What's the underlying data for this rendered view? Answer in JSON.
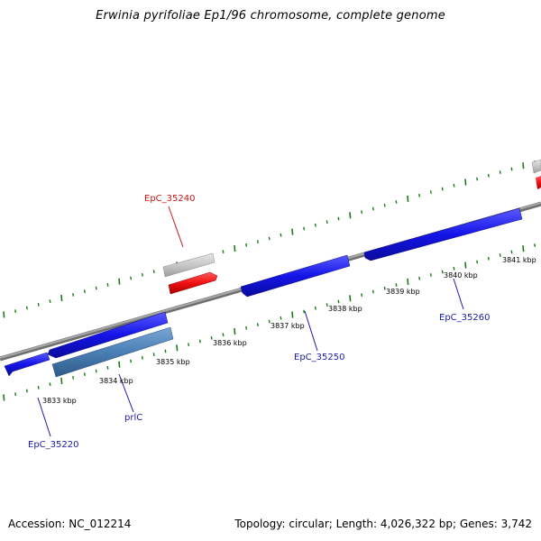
{
  "title": "Erwinia pyrifoliae Ep1/96 chromosome, complete genome",
  "footer": {
    "accession": "Accession: NC_012214",
    "stats": "Topology: circular; Length: 4,026,322 bp; Genes: 3,742"
  },
  "colors": {
    "gene_forward": "#1f1ff0",
    "gene_reverse": "#1f1ff0",
    "gene_prlC": "#4a7fb5",
    "gene_grey": "#c4c4c4",
    "gene_red": "#f01010",
    "label_blue": "#1a1aa8",
    "label_red": "#c81818",
    "tick_green": "#1a7a1a",
    "backbone": "#8a8a8a"
  },
  "kbp_labels": [
    {
      "text": "3833 kbp"
    },
    {
      "text": "3834 kbp"
    },
    {
      "text": "3835 kbp"
    },
    {
      "text": "3836 kbp"
    },
    {
      "text": "3837 kbp"
    },
    {
      "text": "3838 kbp"
    },
    {
      "text": "3839 kbp"
    },
    {
      "text": "3840 kbp"
    },
    {
      "text": "3841 kbp"
    }
  ],
  "gene_labels": [
    {
      "text": "EpC_35240"
    },
    {
      "text": "EpC_35220"
    },
    {
      "text": "prlC"
    },
    {
      "text": "EpC_35250"
    },
    {
      "text": "EpC_35260"
    }
  ]
}
